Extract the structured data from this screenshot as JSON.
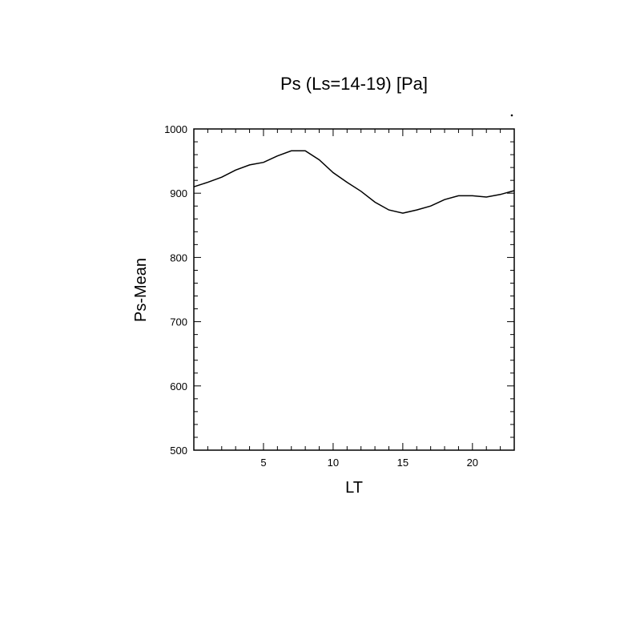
{
  "chart_data": {
    "type": "line",
    "title": "Ps (Ls=14-19) [Pa]",
    "xlabel": "LT",
    "ylabel": "Ps-Mean",
    "xlim": [
      0,
      23
    ],
    "ylim": [
      500,
      1000
    ],
    "xticks": [
      5,
      10,
      15,
      20
    ],
    "yticks": [
      500,
      600,
      700,
      800,
      900,
      1000
    ],
    "grid": false,
    "series": [
      {
        "x": [
          0,
          1,
          2,
          3,
          4,
          5,
          6,
          7,
          8,
          9,
          10,
          11,
          12,
          13,
          14,
          15,
          16,
          17,
          18,
          19,
          20,
          21,
          22,
          23
        ],
        "y": [
          910,
          917,
          925,
          936,
          944,
          948,
          958,
          966,
          966,
          952,
          932,
          917,
          903,
          886,
          874,
          869,
          874,
          880,
          890,
          896,
          896,
          894,
          898,
          904
        ]
      }
    ]
  }
}
